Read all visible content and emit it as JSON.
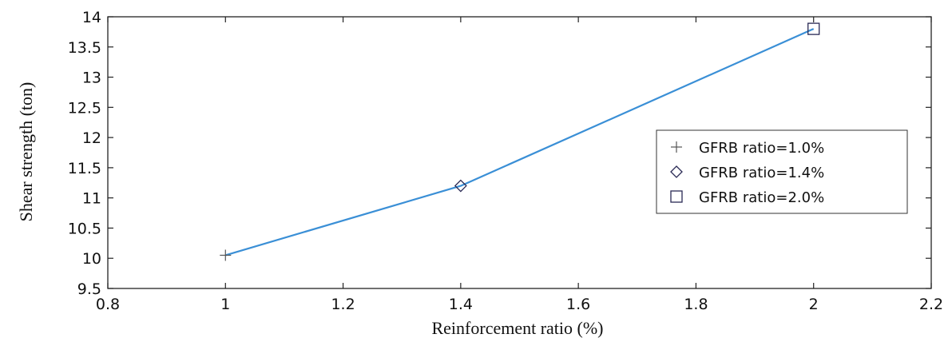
{
  "chart_data": {
    "type": "line",
    "xlabel": "Reinforcement ratio (%)",
    "ylabel": "Shear strength (ton)",
    "xlim": [
      0.8,
      2.2
    ],
    "ylim": [
      9.5,
      14
    ],
    "xticks": [
      0.8,
      1,
      1.2,
      1.4,
      1.6,
      1.8,
      2,
      2.2
    ],
    "yticks": [
      9.5,
      10,
      10.5,
      11,
      11.5,
      12,
      12.5,
      13,
      13.5,
      14
    ],
    "xtick_labels": [
      "0.8",
      "1",
      "1.2",
      "1.4",
      "1.6",
      "1.8",
      "2",
      "2.2"
    ],
    "ytick_labels": [
      "9.5",
      "10",
      "10.5",
      "11",
      "11.5",
      "12",
      "12.5",
      "13",
      "13.5",
      "14"
    ],
    "grid": false,
    "legend_position": "center-right",
    "line": {
      "x": [
        1.0,
        1.4,
        2.0
      ],
      "y": [
        10.05,
        11.2,
        13.8
      ],
      "color": "#3a8fd6"
    },
    "series": [
      {
        "name": "GFRB ratio=1.0%",
        "marker": "plus",
        "x": [
          1.0
        ],
        "y": [
          10.05
        ],
        "color": "#555555"
      },
      {
        "name": "GFRB ratio=1.4%",
        "marker": "diamond",
        "x": [
          1.4
        ],
        "y": [
          11.2
        ],
        "color": "#2a2a55"
      },
      {
        "name": "GFRB ratio=2.0%",
        "marker": "square",
        "x": [
          2.0
        ],
        "y": [
          13.8
        ],
        "color": "#2a2a55"
      }
    ]
  }
}
